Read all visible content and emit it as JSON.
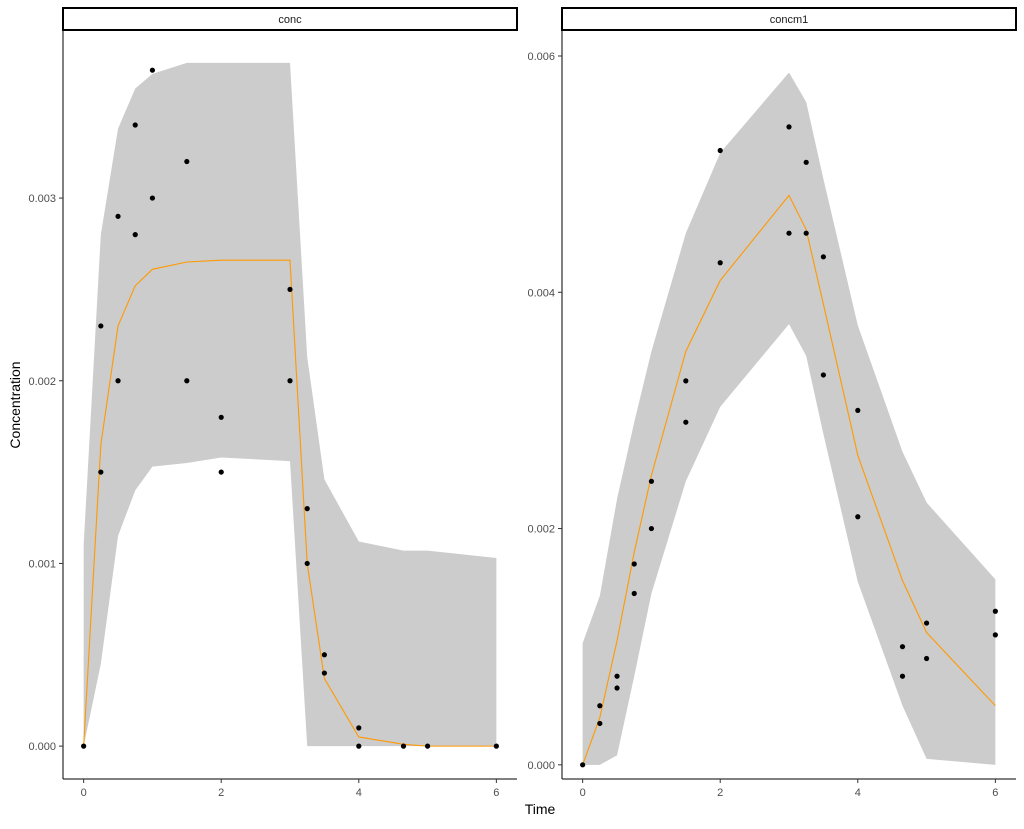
{
  "chart_data": {
    "type": "scatter",
    "xlabel": "Time",
    "ylabel": "Concentration",
    "grid": false,
    "legend": "none",
    "colors": {
      "ribbon": "#cccccc",
      "line": "#ff9900",
      "points": "#000000",
      "axis": "#000000",
      "tick_text": "#4d4d4d",
      "strip_fill": "#ffffff"
    },
    "panels": [
      {
        "strip_label": "conc",
        "xlim": [
          -0.3,
          6.3
        ],
        "ylim": [
          -0.00018,
          0.00392
        ],
        "x_ticks": [
          0,
          2,
          4,
          6
        ],
        "x_tick_labels": [
          "0",
          "2",
          "4",
          "6"
        ],
        "y_ticks": [
          0,
          0.001,
          0.002,
          0.003
        ],
        "y_tick_labels": [
          "0.000",
          "0.001",
          "0.002",
          "0.003"
        ],
        "ribbon": {
          "x": [
            0,
            0.25,
            0.5,
            0.75,
            1,
            1.5,
            2,
            3,
            3.25,
            3.5,
            4,
            4.65,
            5,
            6
          ],
          "lower": [
            0,
            0.00045,
            0.00115,
            0.0014,
            0.00153,
            0.00155,
            0.00158,
            0.00156,
            0,
            0,
            0,
            0,
            0,
            0
          ],
          "upper": [
            0.0011,
            0.0028,
            0.00338,
            0.0036,
            0.00368,
            0.00374,
            0.00374,
            0.00374,
            0.00213,
            0.00146,
            0.00112,
            0.00107,
            0.00107,
            0.00103
          ]
        },
        "line": {
          "x": [
            0,
            0.25,
            0.5,
            0.75,
            1,
            1.5,
            2,
            3,
            3.25,
            3.5,
            4,
            4.65,
            5,
            6
          ],
          "y": [
            0,
            0.00165,
            0.0023,
            0.00252,
            0.00261,
            0.00265,
            0.00266,
            0.00266,
            0.001,
            0.00037,
            5e-05,
            1e-05,
            0,
            0
          ]
        },
        "points": {
          "x": [
            0,
            0.25,
            0.25,
            0.5,
            0.5,
            0.75,
            0.75,
            1,
            1,
            1.5,
            1.5,
            2,
            2,
            3,
            3,
            3.25,
            3.25,
            3.5,
            3.5,
            4,
            4,
            4.65,
            5,
            6
          ],
          "y": [
            0,
            0.0023,
            0.0015,
            0.0029,
            0.002,
            0.0034,
            0.0028,
            0.0037,
            0.003,
            0.0032,
            0.002,
            0.0018,
            0.0015,
            0.0025,
            0.002,
            0.0013,
            0.001,
            0.0005,
            0.0004,
            0.0001,
            0,
            0,
            0,
            0
          ]
        }
      },
      {
        "strip_label": "concm1",
        "xlim": [
          -0.3,
          6.3
        ],
        "ylim": [
          -0.00012,
          0.00622
        ],
        "x_ticks": [
          0,
          2,
          4,
          6
        ],
        "x_tick_labels": [
          "0",
          "2",
          "4",
          "6"
        ],
        "y_ticks": [
          0,
          0.002,
          0.004,
          0.006
        ],
        "y_tick_labels": [
          "0.000",
          "0.002",
          "0.004",
          "0.006"
        ],
        "ribbon": {
          "x": [
            0,
            0.25,
            0.5,
            0.75,
            1,
            1.5,
            2,
            3,
            3.25,
            3.5,
            4,
            4.65,
            5,
            6
          ],
          "lower": [
            0,
            0,
            8e-05,
            0.00075,
            0.00145,
            0.0024,
            0.00303,
            0.00373,
            0.00346,
            0.0028,
            0.00155,
            0.0005,
            5e-05,
            0
          ],
          "upper": [
            0.00103,
            0.00143,
            0.00225,
            0.0029,
            0.0035,
            0.0045,
            0.00518,
            0.00586,
            0.00561,
            0.00496,
            0.00372,
            0.00265,
            0.00222,
            0.00157
          ]
        },
        "line": {
          "x": [
            0,
            0.25,
            0.5,
            0.75,
            1,
            1.5,
            2,
            3,
            3.25,
            3.5,
            4,
            4.65,
            5,
            6
          ],
          "y": [
            0,
            0.0004,
            0.00105,
            0.0018,
            0.00245,
            0.0035,
            0.0041,
            0.00482,
            0.00453,
            0.0039,
            0.00262,
            0.00156,
            0.00112,
            0.0005
          ]
        },
        "points": {
          "x": [
            0,
            0.25,
            0.25,
            0.5,
            0.5,
            0.75,
            0.75,
            1,
            1,
            1.5,
            1.5,
            2,
            2,
            3,
            3,
            3.25,
            3.25,
            3.5,
            3.5,
            4,
            4,
            4.65,
            4.65,
            5,
            5,
            6,
            6
          ],
          "y": [
            0,
            0.0005,
            0.00035,
            0.00075,
            0.00065,
            0.0017,
            0.00145,
            0.0024,
            0.002,
            0.00325,
            0.0029,
            0.0052,
            0.00425,
            0.0054,
            0.0045,
            0.0051,
            0.0045,
            0.0043,
            0.0033,
            0.003,
            0.0021,
            0.001,
            0.00075,
            0.0012,
            0.0009,
            0.0013,
            0.0011
          ]
        }
      }
    ]
  }
}
